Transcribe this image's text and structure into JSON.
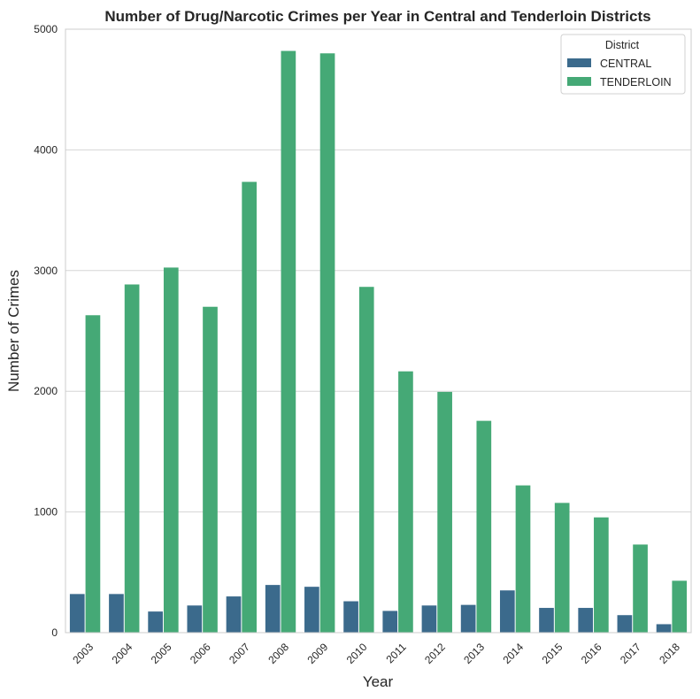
{
  "chart_data": {
    "type": "bar",
    "title": "Number of Drug/Narcotic Crimes per Year in Central and Tenderloin Districts",
    "xlabel": "Year",
    "ylabel": "Number of Crimes",
    "categories": [
      "2003",
      "2004",
      "2005",
      "2006",
      "2007",
      "2008",
      "2009",
      "2010",
      "2011",
      "2012",
      "2013",
      "2014",
      "2015",
      "2016",
      "2017",
      "2018"
    ],
    "ylim": [
      0,
      5000
    ],
    "yticks": [
      0,
      1000,
      2000,
      3000,
      4000,
      5000
    ],
    "grid": "horizontal",
    "legend": {
      "title": "District",
      "placement": "top-right"
    },
    "series": [
      {
        "name": "CENTRAL",
        "color": "#3b6a8c",
        "values": [
          320,
          320,
          175,
          225,
          300,
          395,
          380,
          260,
          180,
          225,
          230,
          350,
          205,
          205,
          145,
          70
        ]
      },
      {
        "name": "TENDERLOIN",
        "color": "#45a976",
        "values": [
          2630,
          2885,
          3025,
          2700,
          3735,
          4820,
          4800,
          2865,
          2165,
          1995,
          1755,
          1220,
          1075,
          955,
          730,
          430
        ]
      }
    ]
  }
}
